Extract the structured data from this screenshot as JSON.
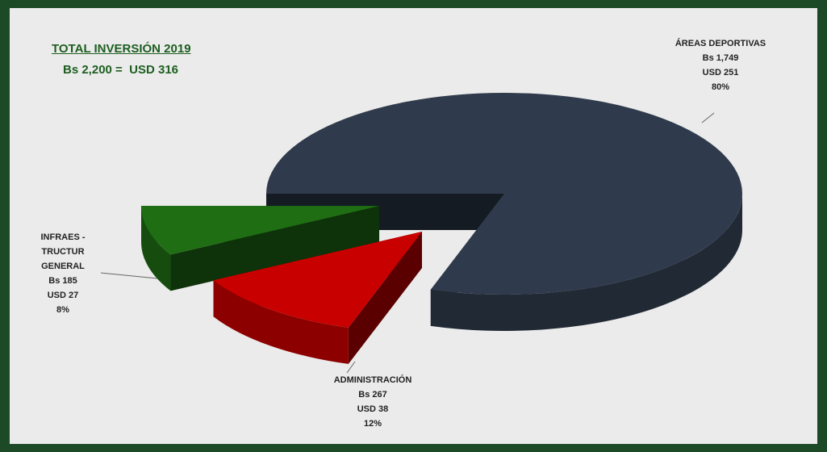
{
  "chart_data": {
    "type": "pie",
    "title": "TOTAL INVERSIÓN 2019",
    "subtitle": "Bs 2,200 =  USD 316",
    "categories": [
      "ÁREAS DEPORTIVAS",
      "ADMINISTRACIÓN",
      "INFRAES - TRUCTUR GENERAL"
    ],
    "values": [
      80,
      12,
      8
    ],
    "value_labels": [
      "80%",
      "12%",
      "8%"
    ],
    "bs_labels": [
      "Bs 1,749",
      "Bs 267",
      "Bs 185"
    ],
    "usd_labels": [
      "USD 251",
      "USD 38",
      "USD 27"
    ],
    "colors": [
      "#2f3b4c",
      "#c80000",
      "#1f6e14"
    ]
  }
}
